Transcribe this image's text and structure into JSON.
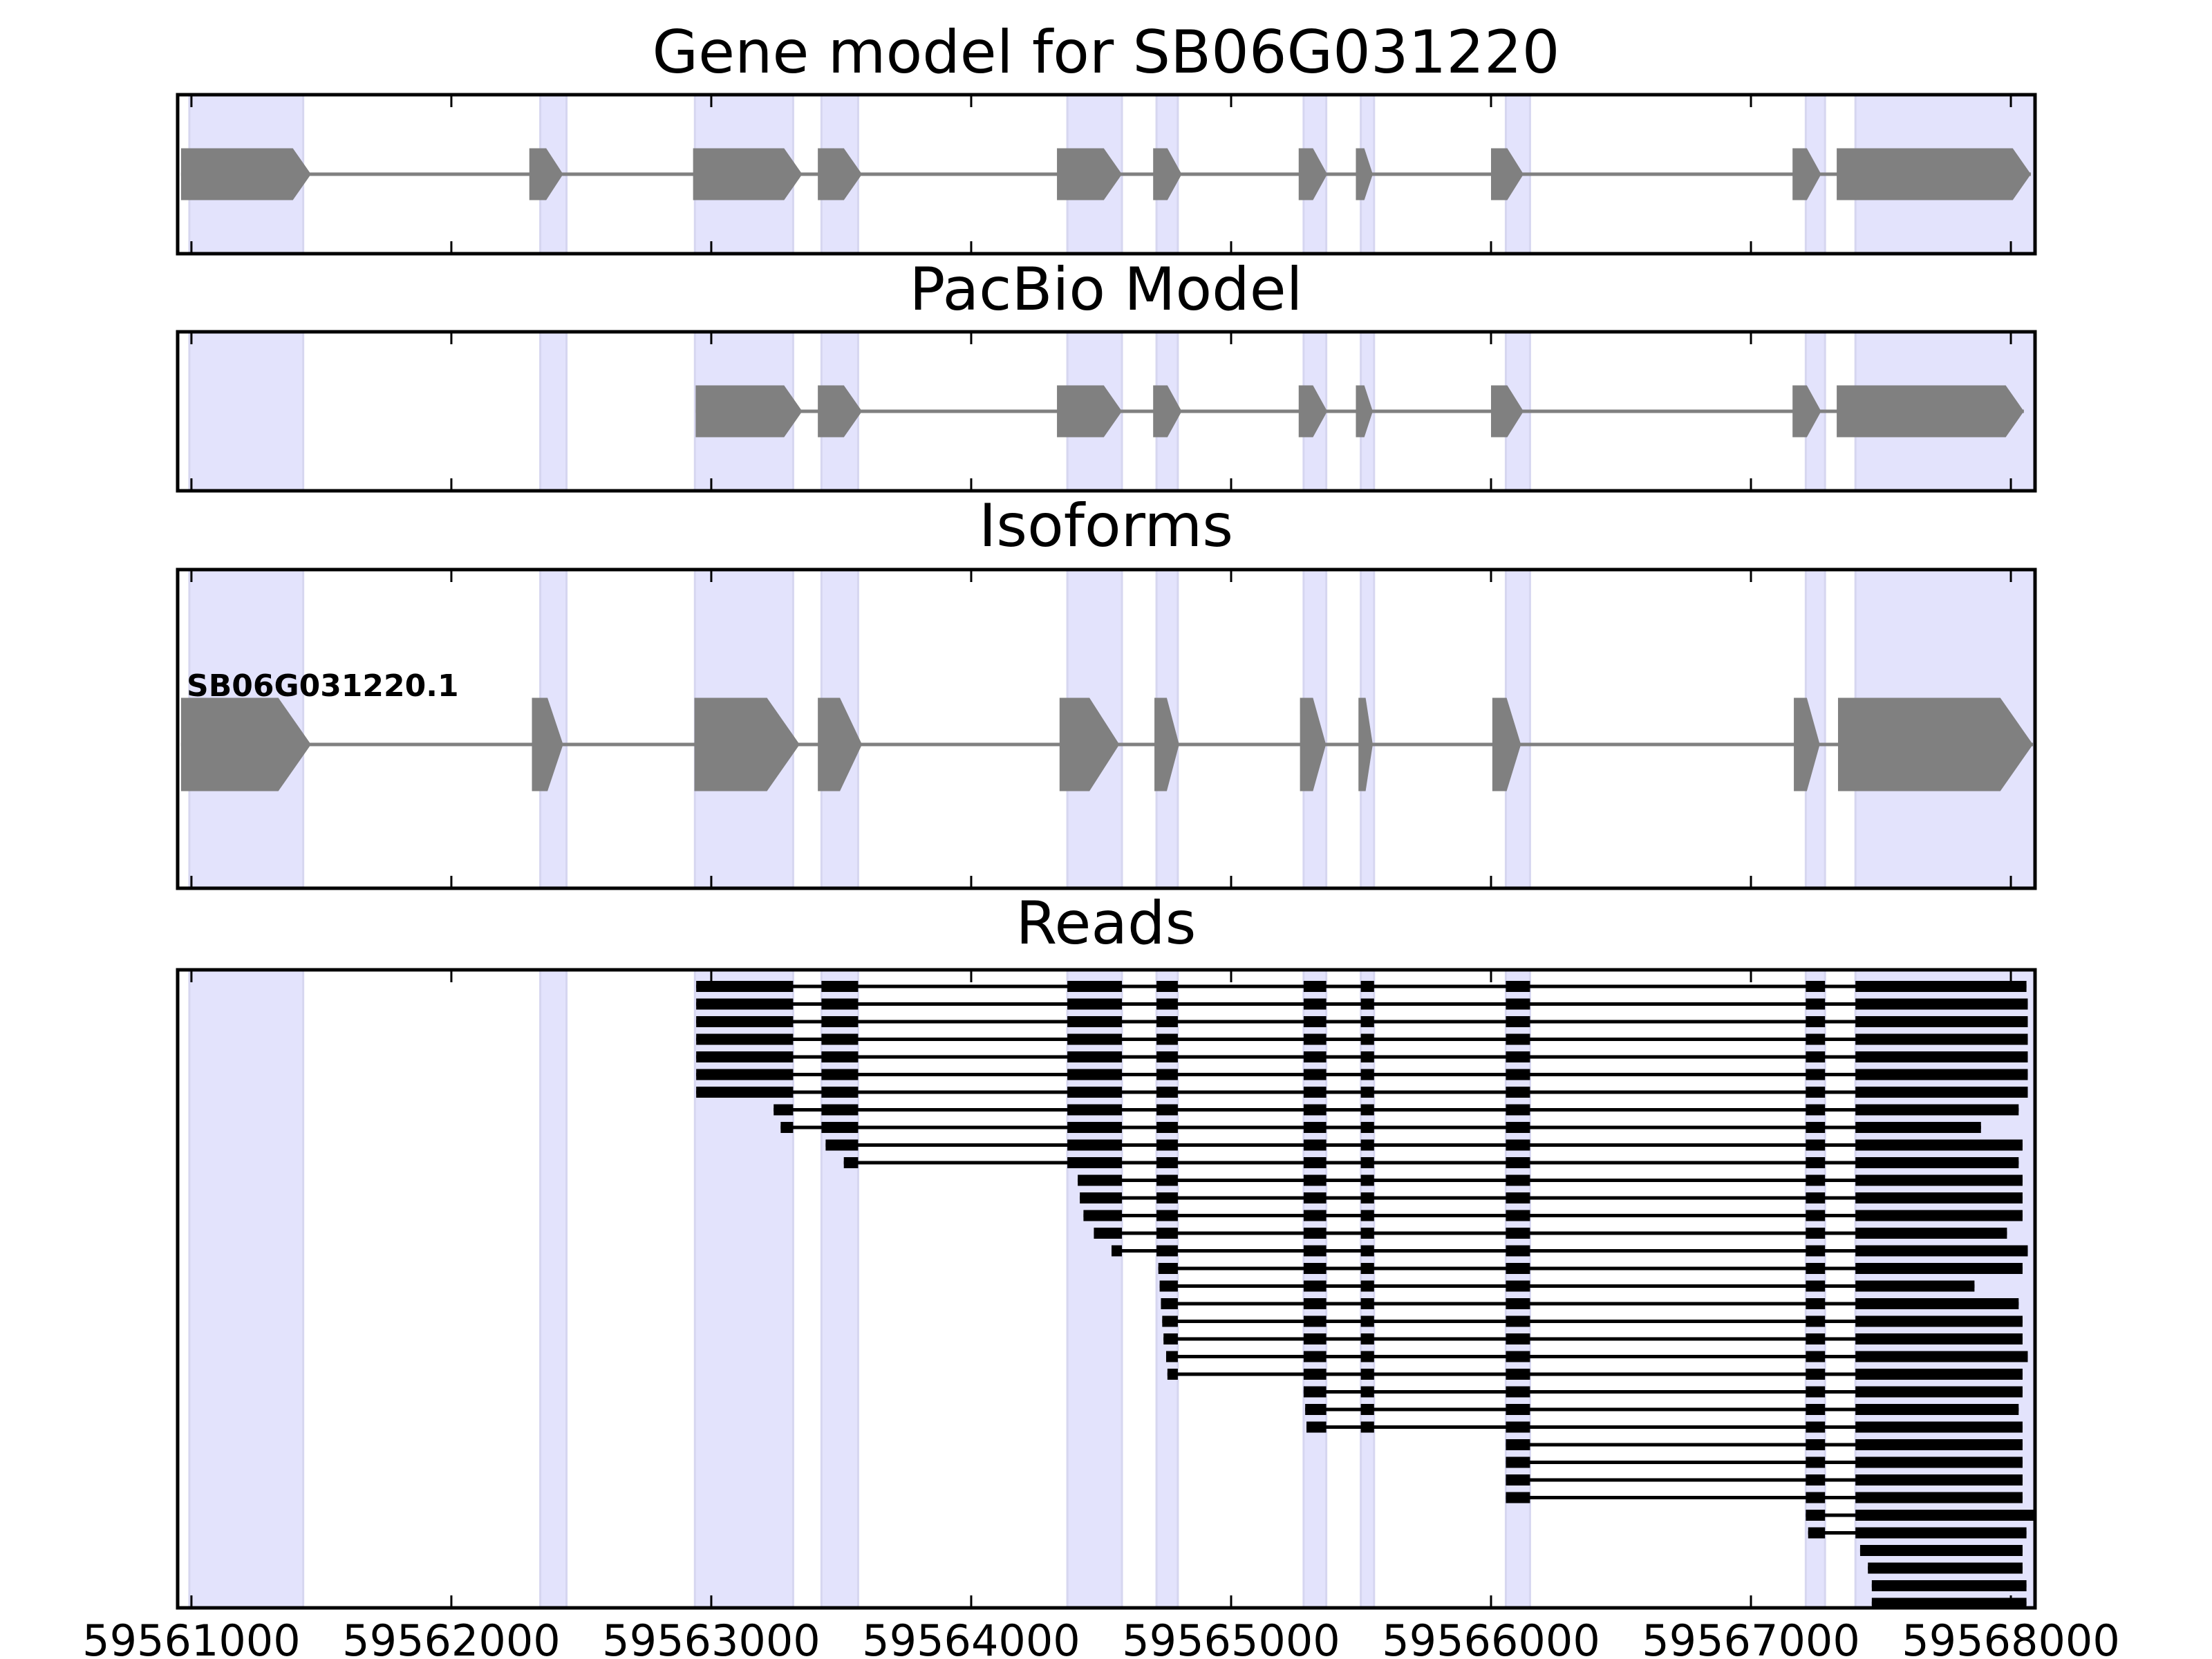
{
  "chart_data": {
    "type": "gene-model",
    "xlim": [
      59560947,
      59568093
    ],
    "x_ticks": [
      59561000,
      59562000,
      59563000,
      59564000,
      59565000,
      59566000,
      59567000,
      59568000
    ],
    "x_tick_labels": [
      "59561000",
      "59562000",
      "59563000",
      "59564000",
      "59565000",
      "59566000",
      "59567000",
      "59568000"
    ],
    "colors": {
      "exon": "#808080",
      "intron": "#808080",
      "shade": "#e3e3fc",
      "read": "#000000"
    },
    "shaded_exons": [
      [
        59560992,
        59561430
      ],
      [
        59562342,
        59562443
      ],
      [
        59562937,
        59563315
      ],
      [
        59563424,
        59563565
      ],
      [
        59564370,
        59564580
      ],
      [
        59564713,
        59564795
      ],
      [
        59565279,
        59565366
      ],
      [
        59565499,
        59565550
      ],
      [
        59566057,
        59566150
      ],
      [
        59567211,
        59567285
      ],
      [
        59567402,
        59568090
      ]
    ],
    "panels": [
      {
        "title": "Gene model for SB06G031220",
        "exons": [
          [
            59560960,
            59561460
          ],
          [
            59562300,
            59562430
          ],
          [
            59562930,
            59563350
          ],
          [
            59563410,
            59563580
          ],
          [
            59564330,
            59564580
          ],
          [
            59564700,
            59564810
          ],
          [
            59565260,
            59565370
          ],
          [
            59565480,
            59565545
          ],
          [
            59566000,
            59566125
          ],
          [
            59567160,
            59567270
          ],
          [
            59567330,
            59568077
          ]
        ]
      },
      {
        "title": "PacBio Model",
        "exons": [
          [
            59562940,
            59563350
          ],
          [
            59563410,
            59563580
          ],
          [
            59564330,
            59564580
          ],
          [
            59564700,
            59564810
          ],
          [
            59565260,
            59565370
          ],
          [
            59565480,
            59565545
          ],
          [
            59566000,
            59566125
          ],
          [
            59567160,
            59567270
          ],
          [
            59567330,
            59568050
          ]
        ]
      },
      {
        "title": "Isoforms",
        "isoform_label": "SB06G031220.1",
        "exons": [
          [
            59560960,
            59561460
          ],
          [
            59562310,
            59562430
          ],
          [
            59562935,
            59563340
          ],
          [
            59563410,
            59563580
          ],
          [
            59564340,
            59564570
          ],
          [
            59564705,
            59564800
          ],
          [
            59565265,
            59565365
          ],
          [
            59565490,
            59565545
          ],
          [
            59566005,
            59566115
          ],
          [
            59567165,
            59567265
          ],
          [
            59567335,
            59568085
          ]
        ]
      },
      {
        "title": "Reads",
        "reads": [
          [
            59562942,
            59568060
          ],
          [
            59562942,
            59568065
          ],
          [
            59562942,
            59568065
          ],
          [
            59562942,
            59568065
          ],
          [
            59562942,
            59568065
          ],
          [
            59562942,
            59568065
          ],
          [
            59562942,
            59568065
          ],
          [
            59563240,
            59568030
          ],
          [
            59563267,
            59567885
          ],
          [
            59563440,
            59568045
          ],
          [
            59563510,
            59568030
          ],
          [
            59564410,
            59568045
          ],
          [
            59564418,
            59568045
          ],
          [
            59564432,
            59568045
          ],
          [
            59564472,
            59567985
          ],
          [
            59564540,
            59568065
          ],
          [
            59564720,
            59568045
          ],
          [
            59564725,
            59567860
          ],
          [
            59564730,
            59568030
          ],
          [
            59564735,
            59568045
          ],
          [
            59564740,
            59568045
          ],
          [
            59564750,
            59568065
          ],
          [
            59564755,
            59568045
          ],
          [
            59565270,
            59568045
          ],
          [
            59565285,
            59568030
          ],
          [
            59565290,
            59568045
          ],
          [
            59566010,
            59568045
          ],
          [
            59566012,
            59568045
          ],
          [
            59566020,
            59568045
          ],
          [
            59566050,
            59568045
          ],
          [
            59567190,
            59568095
          ],
          [
            59567220,
            59568060
          ],
          [
            59567420,
            59568045
          ],
          [
            59567450,
            59568045
          ],
          [
            59567465,
            59568060
          ],
          [
            59567465,
            59568060
          ]
        ]
      }
    ]
  }
}
